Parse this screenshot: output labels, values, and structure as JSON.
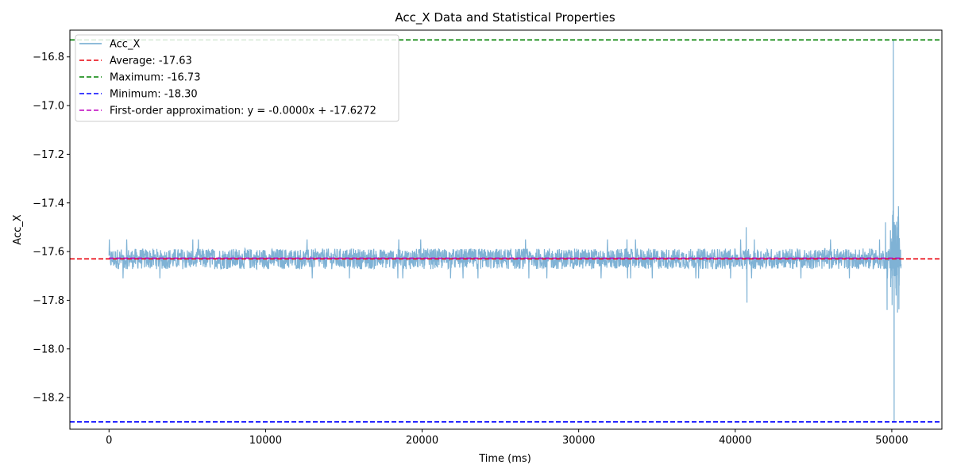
{
  "chart_data": {
    "type": "line",
    "title": "Acc_X Data and Statistical Properties",
    "xlabel": "Time (ms)",
    "ylabel": "Acc_X",
    "xlim": [
      -2500,
      53200
    ],
    "ylim": [
      -18.33,
      -16.69
    ],
    "xticks": [
      0,
      10000,
      20000,
      30000,
      40000,
      50000
    ],
    "xtick_labels": [
      "0",
      "10000",
      "20000",
      "30000",
      "40000",
      "50000"
    ],
    "yticks": [
      -18.2,
      -18.0,
      -17.8,
      -17.6,
      -17.4,
      -17.2,
      -17.0,
      -16.8
    ],
    "ytick_labels": [
      "−18.2",
      "−18.0",
      "−17.8",
      "−17.6",
      "−17.4",
      "−17.2",
      "−17.0",
      "−16.8"
    ],
    "grid": false,
    "legend_position": "top-left",
    "series": [
      {
        "name": "Acc_X",
        "color": "#7fb2d5",
        "style": "solid",
        "x_range": [
          0,
          50600
        ],
        "baseline": -17.63,
        "noise_band": [
          -17.68,
          -17.58
        ],
        "notable_points": [
          {
            "x": 40700,
            "y": -17.5
          },
          {
            "x": 40750,
            "y": -17.81
          },
          {
            "x": 49600,
            "y": -17.48
          },
          {
            "x": 49700,
            "y": -17.84
          },
          {
            "x": 50100,
            "y": -16.73
          },
          {
            "x": 50150,
            "y": -18.3
          }
        ]
      },
      {
        "name": "Average: -17.63",
        "color": "#e8000b",
        "style": "dashed",
        "type": "hline",
        "y": -17.63
      },
      {
        "name": "Maximum: -16.73",
        "color": "#008000",
        "style": "dashed",
        "type": "hline",
        "y": -16.73
      },
      {
        "name": "Minimum: -18.30",
        "color": "#0000ff",
        "style": "dashed",
        "type": "hline",
        "y": -18.3
      },
      {
        "name": "First-order approximation: y = -0.0000x + -17.6272",
        "color": "#bf00bf",
        "style": "dashed",
        "type": "fit",
        "x_range": [
          0,
          50600
        ],
        "slope": 0.0,
        "intercept": -17.6272
      }
    ]
  }
}
